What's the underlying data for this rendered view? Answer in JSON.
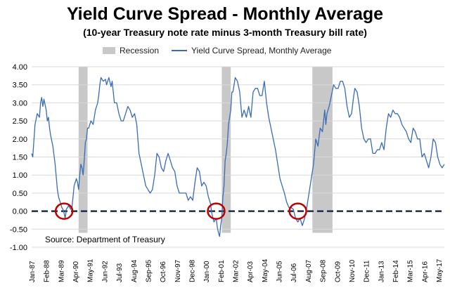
{
  "chart_data": {
    "type": "line",
    "title": "Yield Curve Spread - Monthly Average",
    "subtitle": "(10-year Treasury note rate minus 3-month Treasury bill rate)",
    "legend": {
      "position": "top",
      "entries": [
        "Recession",
        "Yield Curve Spread, Monthly Average"
      ]
    },
    "source": "Source: Department of Treasury",
    "ylim": [
      -1.0,
      4.0
    ],
    "y_ticks": [
      "-1.00",
      "-0.50",
      "0.00",
      "0.50",
      "1.00",
      "1.50",
      "2.00",
      "2.50",
      "3.00",
      "3.50",
      "4.00"
    ],
    "x_ticks": [
      "Jan-87",
      "Feb-88",
      "Mar-89",
      "Apr-90",
      "May-91",
      "Jun-92",
      "Jul-93",
      "Aug-94",
      "Sep-95",
      "Oct-96",
      "Nov-97",
      "Dec-98",
      "Jan-00",
      "Feb-01",
      "Mar-02",
      "Apr-03",
      "May-04",
      "Jun-05",
      "Jul-06",
      "Aug-07",
      "Sep-08",
      "Oct-09",
      "Nov-10",
      "Dec-11",
      "Jan-13",
      "Feb-14",
      "Mar-15",
      "Apr-16",
      "May-17"
    ],
    "x_range": [
      "1987-01",
      "2017-10"
    ],
    "grid": "horizontal",
    "zero_line": "dashed",
    "colors": {
      "line": "#3A6BB5",
      "recession": "#C8C8C8",
      "circle": "#C00000",
      "zero": "#1F2D4A"
    },
    "recessions": [
      {
        "start": "1990-07",
        "end": "1991-03"
      },
      {
        "start": "2001-03",
        "end": "2001-11"
      },
      {
        "start": "2007-12",
        "end": "2009-06"
      }
    ],
    "highlight_circles": [
      "1989-06",
      "2000-10",
      "2006-11"
    ],
    "series": [
      {
        "name": "Yield Curve Spread, Monthly Average",
        "points": [
          [
            "1987-01",
            1.6
          ],
          [
            "1987-02",
            1.5
          ],
          [
            "1987-04",
            2.4
          ],
          [
            "1987-06",
            2.7
          ],
          [
            "1987-08",
            2.6
          ],
          [
            "1987-09",
            3.0
          ],
          [
            "1987-10",
            3.15
          ],
          [
            "1987-11",
            2.9
          ],
          [
            "1987-12",
            3.1
          ],
          [
            "1988-02",
            2.8
          ],
          [
            "1988-03",
            2.5
          ],
          [
            "1988-04",
            2.6
          ],
          [
            "1988-05",
            2.3
          ],
          [
            "1988-06",
            2.1
          ],
          [
            "1988-08",
            1.8
          ],
          [
            "1988-10",
            1.3
          ],
          [
            "1988-12",
            0.6
          ],
          [
            "1989-01",
            0.4
          ],
          [
            "1989-02",
            0.3
          ],
          [
            "1989-03",
            0.2
          ],
          [
            "1989-04",
            0.1
          ],
          [
            "1989-05",
            0.05
          ],
          [
            "1989-06",
            -0.05
          ],
          [
            "1989-07",
            -0.2
          ],
          [
            "1989-08",
            0.05
          ],
          [
            "1989-09",
            0.1
          ],
          [
            "1989-10",
            0.15
          ],
          [
            "1989-11",
            0.1
          ],
          [
            "1989-12",
            0.05
          ],
          [
            "1990-01",
            0.1
          ],
          [
            "1990-02",
            0.4
          ],
          [
            "1990-03",
            0.7
          ],
          [
            "1990-04",
            0.8
          ],
          [
            "1990-05",
            0.9
          ],
          [
            "1990-06",
            0.8
          ],
          [
            "1990-07",
            0.6
          ],
          [
            "1990-08",
            1.0
          ],
          [
            "1990-09",
            1.3
          ],
          [
            "1990-10",
            1.2
          ],
          [
            "1990-11",
            1.0
          ],
          [
            "1990-12",
            1.4
          ],
          [
            "1991-01",
            1.9
          ],
          [
            "1991-02",
            2.0
          ],
          [
            "1991-03",
            2.3
          ],
          [
            "1991-04",
            2.3
          ],
          [
            "1991-06",
            2.5
          ],
          [
            "1991-08",
            2.4
          ],
          [
            "1991-10",
            2.8
          ],
          [
            "1991-12",
            3.0
          ],
          [
            "1992-01",
            3.2
          ],
          [
            "1992-02",
            3.5
          ],
          [
            "1992-03",
            3.7
          ],
          [
            "1992-05",
            3.6
          ],
          [
            "1992-07",
            3.65
          ],
          [
            "1992-08",
            3.5
          ],
          [
            "1992-09",
            3.6
          ],
          [
            "1992-10",
            3.7
          ],
          [
            "1992-12",
            3.45
          ],
          [
            "1993-01",
            3.6
          ],
          [
            "1993-03",
            3.0
          ],
          [
            "1993-05",
            3.0
          ],
          [
            "1993-07",
            2.7
          ],
          [
            "1993-09",
            2.5
          ],
          [
            "1993-11",
            2.5
          ],
          [
            "1994-01",
            2.7
          ],
          [
            "1994-03",
            2.9
          ],
          [
            "1994-05",
            2.8
          ],
          [
            "1994-07",
            2.6
          ],
          [
            "1994-09",
            2.7
          ],
          [
            "1994-11",
            2.4
          ],
          [
            "1995-01",
            1.6
          ],
          [
            "1995-03",
            1.3
          ],
          [
            "1995-05",
            1.0
          ],
          [
            "1995-07",
            0.7
          ],
          [
            "1995-09",
            0.6
          ],
          [
            "1995-11",
            0.5
          ],
          [
            "1996-01",
            0.6
          ],
          [
            "1996-03",
            1.0
          ],
          [
            "1996-05",
            1.6
          ],
          [
            "1996-07",
            1.5
          ],
          [
            "1996-09",
            1.2
          ],
          [
            "1996-11",
            1.1
          ],
          [
            "1997-01",
            1.4
          ],
          [
            "1997-03",
            1.6
          ],
          [
            "1997-05",
            1.4
          ],
          [
            "1997-07",
            1.2
          ],
          [
            "1997-09",
            1.1
          ],
          [
            "1997-11",
            0.7
          ],
          [
            "1998-01",
            0.5
          ],
          [
            "1998-03",
            0.5
          ],
          [
            "1998-05",
            0.5
          ],
          [
            "1998-07",
            0.5
          ],
          [
            "1998-09",
            0.3
          ],
          [
            "1998-11",
            0.4
          ],
          [
            "1999-01",
            0.3
          ],
          [
            "1999-03",
            0.8
          ],
          [
            "1999-05",
            1.2
          ],
          [
            "1999-07",
            1.1
          ],
          [
            "1999-09",
            0.7
          ],
          [
            "1999-11",
            0.8
          ],
          [
            "2000-01",
            0.7
          ],
          [
            "2000-03",
            0.4
          ],
          [
            "2000-05",
            0.2
          ],
          [
            "2000-06",
            -0.05
          ],
          [
            "2000-08",
            -0.3
          ],
          [
            "2000-10",
            -0.2
          ],
          [
            "2000-11",
            -0.45
          ],
          [
            "2000-12",
            -0.6
          ],
          [
            "2001-01",
            -0.7
          ],
          [
            "2001-02",
            -0.4
          ],
          [
            "2001-03",
            -0.2
          ],
          [
            "2001-04",
            0.4
          ],
          [
            "2001-05",
            0.7
          ],
          [
            "2001-06",
            1.4
          ],
          [
            "2001-07",
            1.6
          ],
          [
            "2001-08",
            1.9
          ],
          [
            "2001-09",
            2.4
          ],
          [
            "2001-10",
            2.6
          ],
          [
            "2001-11",
            2.8
          ],
          [
            "2001-12",
            3.3
          ],
          [
            "2002-01",
            3.3
          ],
          [
            "2002-03",
            3.7
          ],
          [
            "2002-05",
            3.6
          ],
          [
            "2002-07",
            3.3
          ],
          [
            "2002-09",
            2.6
          ],
          [
            "2002-11",
            2.8
          ],
          [
            "2003-01",
            2.6
          ],
          [
            "2003-03",
            2.9
          ],
          [
            "2003-05",
            2.6
          ],
          [
            "2003-07",
            3.3
          ],
          [
            "2003-09",
            3.4
          ],
          [
            "2003-11",
            3.4
          ],
          [
            "2004-01",
            3.2
          ],
          [
            "2004-03",
            3.2
          ],
          [
            "2004-05",
            3.6
          ],
          [
            "2004-07",
            3.0
          ],
          [
            "2004-09",
            2.6
          ],
          [
            "2004-11",
            2.3
          ],
          [
            "2005-01",
            2.0
          ],
          [
            "2005-03",
            1.7
          ],
          [
            "2005-05",
            1.3
          ],
          [
            "2005-07",
            0.9
          ],
          [
            "2005-09",
            0.7
          ],
          [
            "2005-11",
            0.5
          ],
          [
            "2006-01",
            0.25
          ],
          [
            "2006-03",
            0.1
          ],
          [
            "2006-05",
            0.1
          ],
          [
            "2006-07",
            0.05
          ],
          [
            "2006-09",
            -0.2
          ],
          [
            "2006-11",
            -0.3
          ],
          [
            "2007-01",
            -0.2
          ],
          [
            "2007-03",
            -0.4
          ],
          [
            "2007-05",
            -0.2
          ],
          [
            "2007-07",
            0.1
          ],
          [
            "2007-09",
            0.5
          ],
          [
            "2007-11",
            0.9
          ],
          [
            "2008-01",
            1.3
          ],
          [
            "2008-03",
            2.0
          ],
          [
            "2008-05",
            1.8
          ],
          [
            "2008-07",
            2.3
          ],
          [
            "2008-09",
            2.2
          ],
          [
            "2008-11",
            2.8
          ],
          [
            "2008-12",
            2.4
          ],
          [
            "2009-01",
            2.7
          ],
          [
            "2009-03",
            2.9
          ],
          [
            "2009-05",
            3.2
          ],
          [
            "2009-07",
            3.5
          ],
          [
            "2009-09",
            3.4
          ],
          [
            "2009-11",
            3.4
          ],
          [
            "2010-01",
            3.6
          ],
          [
            "2010-03",
            3.6
          ],
          [
            "2010-05",
            3.4
          ],
          [
            "2010-07",
            2.9
          ],
          [
            "2010-09",
            2.6
          ],
          [
            "2010-11",
            2.7
          ],
          [
            "2011-01",
            3.2
          ],
          [
            "2011-02",
            3.4
          ],
          [
            "2011-04",
            3.3
          ],
          [
            "2011-06",
            2.9
          ],
          [
            "2011-08",
            2.3
          ],
          [
            "2011-10",
            2.0
          ],
          [
            "2011-12",
            1.9
          ],
          [
            "2012-02",
            2.0
          ],
          [
            "2012-04",
            2.0
          ],
          [
            "2012-06",
            1.6
          ],
          [
            "2012-08",
            1.6
          ],
          [
            "2012-10",
            1.7
          ],
          [
            "2012-12",
            1.7
          ],
          [
            "2013-02",
            1.9
          ],
          [
            "2013-04",
            1.7
          ],
          [
            "2013-06",
            2.3
          ],
          [
            "2013-08",
            2.7
          ],
          [
            "2013-10",
            2.6
          ],
          [
            "2013-12",
            2.8
          ],
          [
            "2014-02",
            2.7
          ],
          [
            "2014-04",
            2.7
          ],
          [
            "2014-06",
            2.6
          ],
          [
            "2014-08",
            2.4
          ],
          [
            "2014-10",
            2.3
          ],
          [
            "2014-12",
            2.2
          ],
          [
            "2015-02",
            2.0
          ],
          [
            "2015-04",
            1.9
          ],
          [
            "2015-06",
            2.3
          ],
          [
            "2015-08",
            2.2
          ],
          [
            "2015-10",
            2.0
          ],
          [
            "2015-12",
            2.0
          ],
          [
            "2016-02",
            1.5
          ],
          [
            "2016-04",
            1.6
          ],
          [
            "2016-06",
            1.4
          ],
          [
            "2016-08",
            1.2
          ],
          [
            "2016-10",
            1.5
          ],
          [
            "2016-12",
            2.0
          ],
          [
            "2017-02",
            1.9
          ],
          [
            "2017-04",
            1.5
          ],
          [
            "2017-06",
            1.3
          ],
          [
            "2017-08",
            1.2
          ],
          [
            "2017-10",
            1.3
          ]
        ]
      }
    ]
  }
}
